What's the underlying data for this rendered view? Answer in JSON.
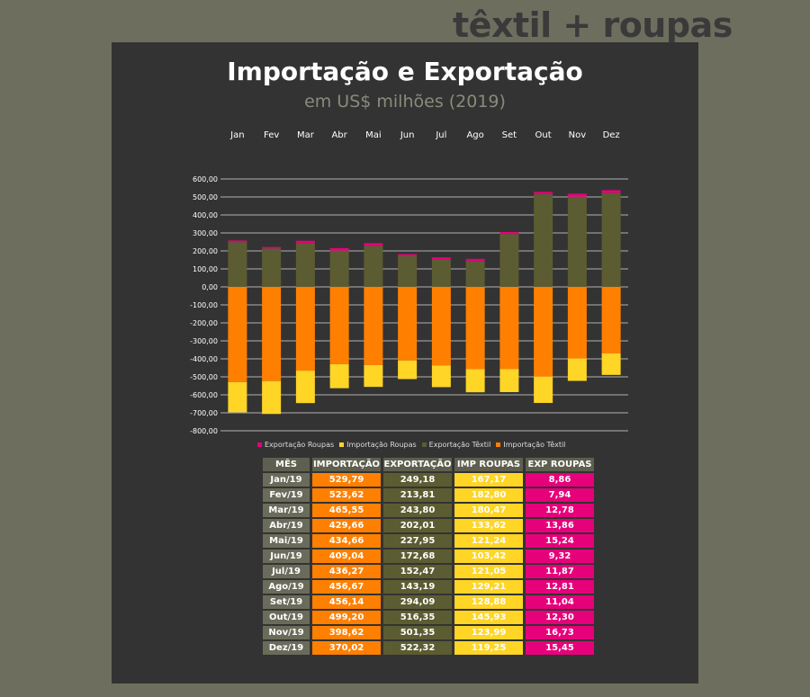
{
  "brand": "têxtil + roupas",
  "chart_data": {
    "type": "bar",
    "stacked": true,
    "title": "Importação e Exportação",
    "subtitle": "em US$ milhões (2019)",
    "categories": [
      "Jan",
      "Fev",
      "Mar",
      "Abr",
      "Mai",
      "Jun",
      "Jul",
      "Ago",
      "Set",
      "Out",
      "Nov",
      "Dez"
    ],
    "ylim": [
      -800,
      600
    ],
    "yticks": [
      "600,00",
      "500,00",
      "400,00",
      "300,00",
      "200,00",
      "100,00",
      "0,00",
      "-100,00",
      "-200,00",
      "-300,00",
      "-400,00",
      "-500,00",
      "-600,00",
      "-700,00",
      "-800,00"
    ],
    "grid": true,
    "legend_position": "bottom",
    "series": [
      {
        "name": "Exportação Roupas",
        "color": "#e6007a",
        "values": [
          8.86,
          7.94,
          12.78,
          13.86,
          15.24,
          9.32,
          11.87,
          12.81,
          11.04,
          12.3,
          16.73,
          15.45
        ]
      },
      {
        "name": "Importação Roupas",
        "color": "#ffd526",
        "values": [
          -167.17,
          -182.8,
          -180.47,
          -133.62,
          -121.24,
          -103.42,
          -121.05,
          -129.21,
          -128.88,
          -145.93,
          -123.99,
          -119.25
        ]
      },
      {
        "name": "Exportação Têxtil",
        "color": "#5c5c33",
        "values": [
          249.18,
          213.81,
          243.8,
          202.01,
          227.95,
          172.68,
          152.47,
          143.19,
          294.09,
          516.35,
          501.35,
          522.32
        ]
      },
      {
        "name": "Importação Têxtil",
        "color": "#ff8000",
        "values": [
          -529.79,
          -523.62,
          -465.55,
          -429.66,
          -434.66,
          -409.04,
          -436.27,
          -456.67,
          -456.14,
          -499.2,
          -398.62,
          -370.02
        ]
      }
    ]
  },
  "table": {
    "headers": [
      "MÊS",
      "IMPORTAÇÃO",
      "EXPORTAÇÃO",
      "IMP ROUPAS",
      "EXP ROUPAS"
    ],
    "rows": [
      [
        "Jan/19",
        "529,79",
        "249,18",
        "167,17",
        "8,86"
      ],
      [
        "Fev/19",
        "523,62",
        "213,81",
        "182,80",
        "7,94"
      ],
      [
        "Mar/19",
        "465,55",
        "243,80",
        "180,47",
        "12,78"
      ],
      [
        "Abr/19",
        "429,66",
        "202,01",
        "133,62",
        "13,86"
      ],
      [
        "Mai/19",
        "434,66",
        "227,95",
        "121,24",
        "15,24"
      ],
      [
        "Jun/19",
        "409,04",
        "172,68",
        "103,42",
        "9,32"
      ],
      [
        "Jul/19",
        "436,27",
        "152,47",
        "121,05",
        "11,87"
      ],
      [
        "Ago/19",
        "456,67",
        "143,19",
        "129,21",
        "12,81"
      ],
      [
        "Set/19",
        "456,14",
        "294,09",
        "128,88",
        "11,04"
      ],
      [
        "Out/19",
        "499,20",
        "516,35",
        "145,93",
        "12,30"
      ],
      [
        "Nov/19",
        "398,62",
        "501,35",
        "123,99",
        "16,73"
      ],
      [
        "Dez/19",
        "370,02",
        "522,32",
        "119,25",
        "15,45"
      ]
    ]
  }
}
